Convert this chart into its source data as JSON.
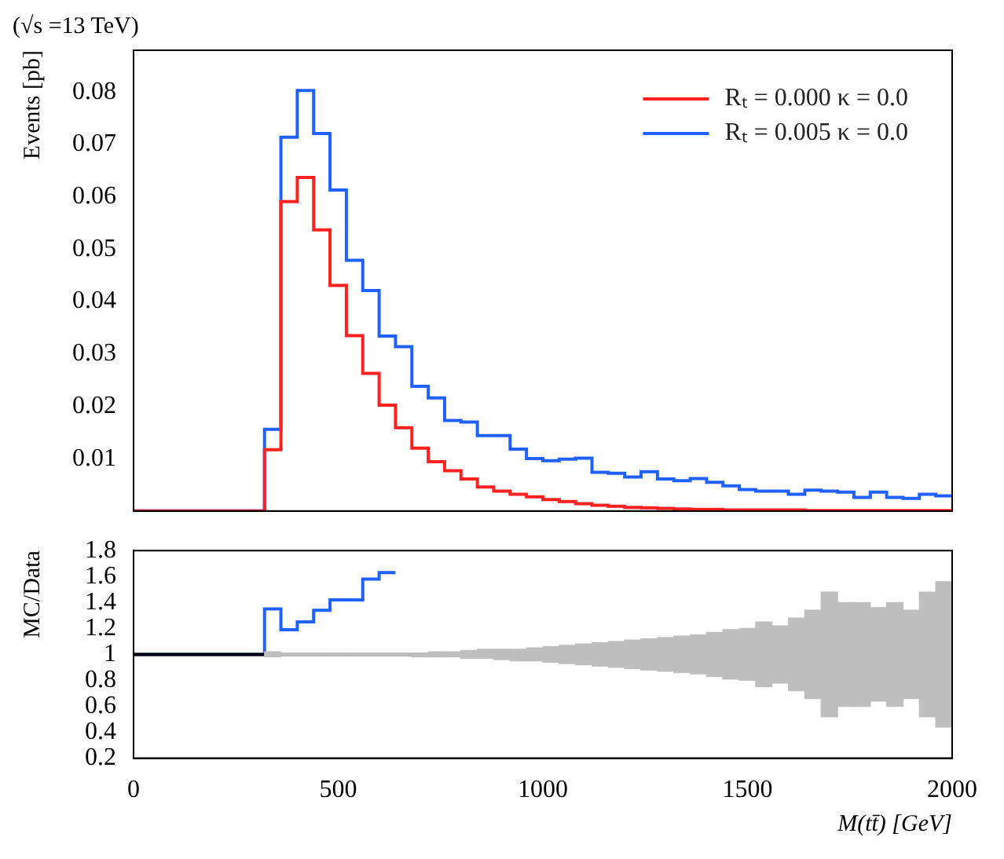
{
  "chart_data": [
    {
      "type": "histogram",
      "title": "(√s =13 TeV)",
      "ylabel": "Events [pb]",
      "bins": [
        0,
        40,
        80,
        120,
        160,
        200,
        240,
        280,
        320,
        360,
        400,
        440,
        480,
        520,
        560,
        600,
        640,
        680,
        720,
        760,
        800,
        840,
        880,
        920,
        960,
        1000,
        1040,
        1080,
        1120,
        1160,
        1200,
        1240,
        1280,
        1320,
        1360,
        1400,
        1440,
        1480,
        1520,
        1560,
        1600,
        1640,
        1680,
        1720,
        1760,
        1800,
        1840,
        1880,
        1920,
        1960,
        2000
      ],
      "series": [
        {
          "name": "Rₜ = 0.000 κ = 0.0",
          "color": "#ff2020",
          "values": [
            0,
            0,
            0,
            0,
            0,
            0,
            0,
            0,
            0.0117,
            0.0591,
            0.0637,
            0.0537,
            0.0431,
            0.0335,
            0.0263,
            0.0202,
            0.0159,
            0.012,
            0.0094,
            0.0077,
            0.0061,
            0.0046,
            0.0038,
            0.0032,
            0.0027,
            0.0022,
            0.0018,
            0.0014,
            0.0011,
            0.0009,
            0.0007,
            0.0006,
            0.0005,
            0.0004,
            0.0003,
            0.0003,
            0.0002,
            0.0002,
            0.0002,
            0.0002,
            0.0002,
            0.0001,
            0.0001,
            0.0001,
            0.0001,
            0.0001,
            0.0001,
            0.0001,
            0.0001,
            0.0001
          ]
        },
        {
          "name": "Rₜ = 0.005 κ = 0.0",
          "color": "#2060ff",
          "values": [
            0,
            0,
            0,
            0,
            0,
            0,
            0,
            0,
            0.0156,
            0.0714,
            0.0803,
            0.0721,
            0.0613,
            0.0479,
            0.0421,
            0.0334,
            0.0314,
            0.0238,
            0.0216,
            0.0173,
            0.017,
            0.0144,
            0.0144,
            0.0118,
            0.01,
            0.0096,
            0.0099,
            0.0101,
            0.0074,
            0.0072,
            0.0065,
            0.0075,
            0.0061,
            0.0058,
            0.0062,
            0.0055,
            0.0048,
            0.0041,
            0.0038,
            0.0038,
            0.0032,
            0.004,
            0.0038,
            0.0036,
            0.0026,
            0.0036,
            0.0026,
            0.0024,
            0.0032,
            0.0029
          ]
        }
      ],
      "xlim": [
        0,
        2000
      ],
      "ylim": [
        0,
        0.088
      ],
      "yticks": [
        0.01,
        0.02,
        0.03,
        0.04,
        0.05,
        0.06,
        0.07,
        0.08
      ],
      "tick_labels": "y",
      "legend": "top right",
      "grid": false
    },
    {
      "type": "histogram",
      "xlabel": "M(tt̄) [GeV]",
      "ylabel": "MC/Data",
      "bins": [
        0,
        40,
        80,
        120,
        160,
        200,
        240,
        280,
        320,
        360,
        400,
        440,
        480,
        520,
        560,
        600,
        640,
        680,
        720,
        760,
        800,
        840,
        880,
        920,
        960,
        1000,
        1040,
        1080,
        1120,
        1160,
        1200,
        1240,
        1280,
        1320,
        1360,
        1400,
        1440,
        1480,
        1520,
        1560,
        1600,
        1640,
        1680,
        1720,
        1760,
        1800,
        1840,
        1880,
        1920,
        1960,
        2000
      ],
      "series": [
        {
          "type": "bar",
          "color": "#bebebe",
          "x": [
            340,
            380,
            420,
            460,
            500,
            540,
            580,
            620,
            660,
            700,
            740,
            780,
            820,
            860,
            900,
            940,
            980,
            1020,
            1060,
            1100,
            1140,
            1180,
            1220,
            1260,
            1300,
            1340,
            1380,
            1420,
            1460,
            1500,
            1540,
            1580,
            1620,
            1660,
            1700,
            1740,
            1780,
            1820,
            1860,
            1900,
            1940,
            1980
          ],
          "base": [
            0.98,
            0.99,
            0.99,
            0.99,
            0.99,
            0.99,
            0.99,
            0.99,
            0.99,
            0.98,
            0.98,
            0.98,
            0.97,
            0.97,
            0.96,
            0.95,
            0.95,
            0.94,
            0.93,
            0.92,
            0.91,
            0.9,
            0.89,
            0.88,
            0.87,
            0.86,
            0.85,
            0.83,
            0.81,
            0.8,
            0.75,
            0.78,
            0.72,
            0.66,
            0.52,
            0.6,
            0.6,
            0.64,
            0.6,
            0.66,
            0.52,
            0.44
          ],
          "values": [
            0.04,
            0.02,
            0.02,
            0.02,
            0.02,
            0.02,
            0.02,
            0.02,
            0.02,
            0.03,
            0.04,
            0.04,
            0.06,
            0.07,
            0.08,
            0.09,
            0.1,
            0.12,
            0.14,
            0.16,
            0.18,
            0.2,
            0.22,
            0.24,
            0.26,
            0.28,
            0.3,
            0.34,
            0.38,
            0.4,
            0.5,
            0.44,
            0.56,
            0.68,
            0.96,
            0.8,
            0.8,
            0.72,
            0.8,
            0.68,
            0.96,
            1.12
          ]
        },
        {
          "color": "#000000",
          "values": [
            1,
            1,
            1,
            1,
            1,
            1,
            1,
            1,
            1,
            1,
            1,
            1,
            1,
            1,
            1,
            1,
            1,
            1,
            1,
            1,
            1,
            1,
            1,
            1,
            1,
            1,
            1,
            1,
            1,
            1,
            1,
            1,
            1,
            1,
            1,
            1,
            1,
            1,
            1,
            1,
            1,
            1,
            1,
            1,
            1,
            1,
            1,
            1,
            1,
            1
          ]
        },
        {
          "color": "#2060ff",
          "bins": [
            0,
            40,
            80,
            120,
            160,
            200,
            240,
            280,
            320,
            360,
            400,
            440,
            480,
            520,
            560,
            600,
            640
          ],
          "values": [
            1,
            1,
            1,
            1,
            1,
            1,
            1,
            1,
            1.35,
            1.19,
            1.25,
            1.34,
            1.42,
            1.42,
            1.58,
            1.63
          ]
        }
      ],
      "xlim": [
        0,
        2000
      ],
      "xticks": [
        0,
        500,
        1000,
        1500,
        2000
      ],
      "ylim": [
        0.2,
        1.8
      ],
      "yticks": [
        0.2,
        0.4,
        0.6,
        0.8,
        1,
        1.2,
        1.4,
        1.6,
        1.8
      ],
      "grid": false
    }
  ]
}
